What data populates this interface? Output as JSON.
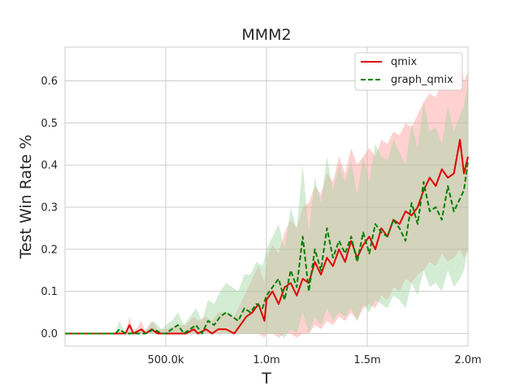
{
  "chart_data": {
    "type": "line",
    "title": "MMM2",
    "xlabel": "T",
    "ylabel": "Test Win Rate %",
    "xlim": [
      0,
      2000000
    ],
    "ylim": [
      -0.03,
      0.68
    ],
    "xticks": [
      500000,
      1000000,
      1500000,
      2000000
    ],
    "xtick_labels": [
      "500.0k",
      "1.0m",
      "1.5m",
      "2.0m"
    ],
    "yticks": [
      0.0,
      0.1,
      0.2,
      0.3,
      0.4,
      0.5,
      0.6
    ],
    "ytick_labels": [
      "0.0",
      "0.1",
      "0.2",
      "0.3",
      "0.4",
      "0.5",
      "0.6"
    ],
    "grid": true,
    "legend_position": "top-right",
    "series": [
      {
        "name": "qmix",
        "color": "#e00000",
        "style": "solid",
        "band_color": "#ff9a9a",
        "x": [
          0,
          300000,
          320000,
          340000,
          380000,
          400000,
          430000,
          460000,
          500000,
          550000,
          600000,
          640000,
          660000,
          700000,
          730000,
          760000,
          800000,
          840000,
          870000,
          900000,
          930000,
          960000,
          990000,
          1000000,
          1030000,
          1060000,
          1090000,
          1120000,
          1150000,
          1180000,
          1210000,
          1240000,
          1270000,
          1300000,
          1330000,
          1360000,
          1390000,
          1420000,
          1450000,
          1480000,
          1510000,
          1540000,
          1570000,
          1600000,
          1630000,
          1660000,
          1690000,
          1720000,
          1750000,
          1780000,
          1810000,
          1840000,
          1870000,
          1900000,
          1930000,
          1960000,
          1980000,
          2000000
        ],
        "y": [
          0.0,
          0.0,
          0.02,
          0.0,
          0.01,
          0.0,
          0.01,
          0.0,
          0.0,
          0.0,
          0.0,
          0.01,
          0.0,
          0.01,
          0.0,
          0.01,
          0.01,
          0.0,
          0.02,
          0.04,
          0.05,
          0.07,
          0.03,
          0.08,
          0.1,
          0.07,
          0.11,
          0.12,
          0.09,
          0.13,
          0.12,
          0.17,
          0.14,
          0.18,
          0.16,
          0.2,
          0.17,
          0.22,
          0.18,
          0.21,
          0.23,
          0.2,
          0.25,
          0.23,
          0.27,
          0.26,
          0.29,
          0.28,
          0.3,
          0.34,
          0.37,
          0.35,
          0.39,
          0.37,
          0.38,
          0.46,
          0.38,
          0.42
        ],
        "lower": [
          0.0,
          0.0,
          0.0,
          0.0,
          0.0,
          0.0,
          0.0,
          0.0,
          0.0,
          0.0,
          0.0,
          0.0,
          0.0,
          0.0,
          0.0,
          0.0,
          0.0,
          0.0,
          0.0,
          0.0,
          0.0,
          0.0,
          -0.01,
          0.0,
          0.0,
          -0.01,
          0.0,
          0.0,
          -0.01,
          0.0,
          0.0,
          0.02,
          0.01,
          0.03,
          0.02,
          0.04,
          0.03,
          0.05,
          0.03,
          0.06,
          0.07,
          0.06,
          0.09,
          0.08,
          0.11,
          0.1,
          0.13,
          0.12,
          0.14,
          0.15,
          0.17,
          0.16,
          0.19,
          0.17,
          0.18,
          0.2,
          0.18,
          0.2
        ],
        "upper": [
          0.0,
          0.0,
          0.04,
          0.0,
          0.03,
          0.0,
          0.03,
          0.01,
          0.01,
          0.02,
          0.02,
          0.04,
          0.03,
          0.04,
          0.03,
          0.05,
          0.05,
          0.04,
          0.07,
          0.1,
          0.13,
          0.16,
          0.12,
          0.18,
          0.21,
          0.19,
          0.24,
          0.27,
          0.25,
          0.3,
          0.31,
          0.35,
          0.33,
          0.38,
          0.36,
          0.42,
          0.38,
          0.44,
          0.4,
          0.42,
          0.44,
          0.42,
          0.46,
          0.45,
          0.48,
          0.47,
          0.5,
          0.49,
          0.52,
          0.55,
          0.57,
          0.56,
          0.6,
          0.58,
          0.59,
          0.65,
          0.6,
          0.62
        ]
      },
      {
        "name": "graph_qmix",
        "color": "#008000",
        "style": "dashed",
        "band_color": "#9fd49f",
        "x": [
          0,
          250000,
          270000,
          300000,
          350000,
          400000,
          440000,
          480000,
          500000,
          530000,
          560000,
          590000,
          620000,
          650000,
          680000,
          710000,
          740000,
          770000,
          800000,
          830000,
          860000,
          890000,
          920000,
          950000,
          980000,
          1000000,
          1030000,
          1060000,
          1090000,
          1120000,
          1150000,
          1180000,
          1210000,
          1240000,
          1270000,
          1300000,
          1330000,
          1360000,
          1390000,
          1420000,
          1450000,
          1480000,
          1510000,
          1540000,
          1570000,
          1600000,
          1630000,
          1660000,
          1690000,
          1720000,
          1750000,
          1780000,
          1810000,
          1840000,
          1870000,
          1900000,
          1930000,
          1960000,
          1980000,
          2000000
        ],
        "y": [
          0.0,
          0.0,
          0.01,
          0.0,
          0.0,
          0.0,
          0.01,
          0.0,
          0.0,
          0.01,
          0.02,
          0.0,
          0.01,
          0.02,
          0.0,
          0.03,
          0.02,
          0.04,
          0.05,
          0.04,
          0.03,
          0.06,
          0.05,
          0.07,
          0.06,
          0.09,
          0.11,
          0.13,
          0.08,
          0.15,
          0.11,
          0.23,
          0.1,
          0.2,
          0.15,
          0.25,
          0.18,
          0.22,
          0.19,
          0.23,
          0.17,
          0.24,
          0.19,
          0.26,
          0.24,
          0.23,
          0.27,
          0.25,
          0.22,
          0.31,
          0.26,
          0.36,
          0.29,
          0.3,
          0.27,
          0.35,
          0.29,
          0.32,
          0.34,
          0.41
        ],
        "lower": [
          0.0,
          0.0,
          0.0,
          0.0,
          0.0,
          0.0,
          0.0,
          0.0,
          0.0,
          0.0,
          0.0,
          0.0,
          0.0,
          0.0,
          0.0,
          0.0,
          0.0,
          0.0,
          0.0,
          0.0,
          0.0,
          0.0,
          0.0,
          0.0,
          0.0,
          0.0,
          0.0,
          0.0,
          -0.01,
          0.01,
          0.0,
          0.05,
          0.0,
          0.04,
          0.02,
          0.06,
          0.03,
          0.05,
          0.04,
          0.06,
          0.03,
          0.07,
          0.05,
          0.08,
          0.07,
          0.06,
          0.09,
          0.08,
          0.06,
          0.12,
          0.09,
          0.15,
          0.11,
          0.12,
          0.1,
          0.15,
          0.11,
          0.13,
          0.15,
          0.2
        ],
        "upper": [
          0.0,
          0.0,
          0.03,
          0.0,
          0.01,
          0.01,
          0.03,
          0.01,
          0.02,
          0.03,
          0.05,
          0.02,
          0.04,
          0.06,
          0.03,
          0.08,
          0.07,
          0.1,
          0.12,
          0.11,
          0.1,
          0.14,
          0.14,
          0.17,
          0.16,
          0.2,
          0.23,
          0.26,
          0.2,
          0.3,
          0.25,
          0.4,
          0.24,
          0.37,
          0.31,
          0.42,
          0.34,
          0.4,
          0.36,
          0.41,
          0.33,
          0.42,
          0.36,
          0.45,
          0.42,
          0.41,
          0.46,
          0.43,
          0.4,
          0.5,
          0.44,
          0.55,
          0.48,
          0.49,
          0.45,
          0.54,
          0.48,
          0.52,
          0.54,
          0.6
        ]
      }
    ]
  }
}
